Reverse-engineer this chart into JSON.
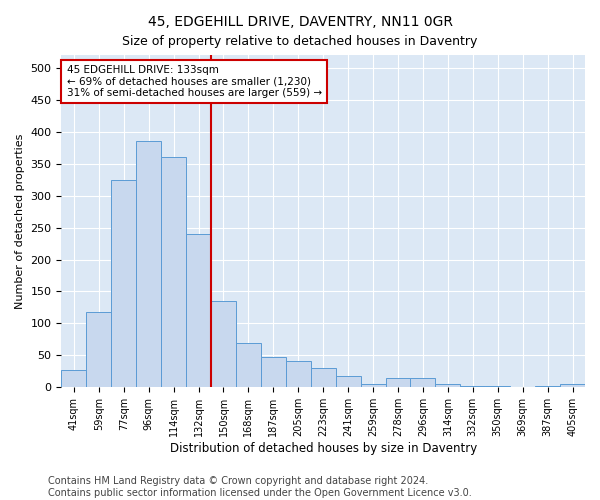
{
  "title": "45, EDGEHILL DRIVE, DAVENTRY, NN11 0GR",
  "subtitle": "Size of property relative to detached houses in Daventry",
  "xlabel": "Distribution of detached houses by size in Daventry",
  "ylabel": "Number of detached properties",
  "categories": [
    "41sqm",
    "59sqm",
    "77sqm",
    "96sqm",
    "114sqm",
    "132sqm",
    "150sqm",
    "168sqm",
    "187sqm",
    "205sqm",
    "223sqm",
    "241sqm",
    "259sqm",
    "278sqm",
    "296sqm",
    "314sqm",
    "332sqm",
    "350sqm",
    "369sqm",
    "387sqm",
    "405sqm"
  ],
  "values": [
    27,
    118,
    325,
    385,
    360,
    240,
    135,
    70,
    47,
    42,
    30,
    18,
    5,
    15,
    14,
    5,
    2,
    2,
    0,
    2,
    5
  ],
  "bar_color": "#c8d8ee",
  "bar_edge_color": "#5b9bd5",
  "vline_x_index": 5,
  "vline_color": "#cc0000",
  "annotation_line1": "45 EDGEHILL DRIVE: 133sqm",
  "annotation_line2": "← 69% of detached houses are smaller (1,230)",
  "annotation_line3": "31% of semi-detached houses are larger (559) →",
  "annotation_box_color": "#ffffff",
  "annotation_box_edge": "#cc0000",
  "ylim": [
    0,
    520
  ],
  "yticks": [
    0,
    50,
    100,
    150,
    200,
    250,
    300,
    350,
    400,
    450,
    500
  ],
  "bg_color": "#dce8f5",
  "footer": "Contains HM Land Registry data © Crown copyright and database right 2024.\nContains public sector information licensed under the Open Government Licence v3.0.",
  "title_fontsize": 10,
  "subtitle_fontsize": 9,
  "footer_fontsize": 7,
  "ylabel_fontsize": 8,
  "xlabel_fontsize": 8.5
}
